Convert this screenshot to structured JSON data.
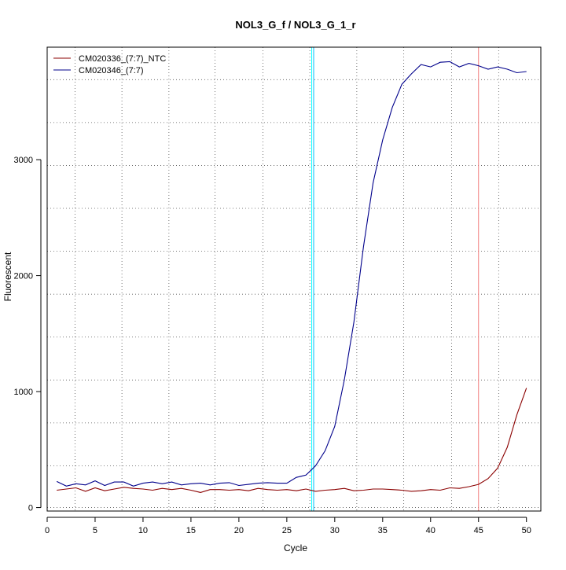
{
  "chart_data": {
    "type": "line",
    "title": "NOL3_G_f / NOL3_G_1_r",
    "xlabel": "Cycle",
    "ylabel": "Fluorescent",
    "xlim": [
      0,
      51.5
    ],
    "ylim": [
      -30,
      3970
    ],
    "x_ticks": [
      0,
      5,
      10,
      15,
      20,
      25,
      30,
      35,
      40,
      45,
      50
    ],
    "y_ticks": [
      0,
      1000,
      2000,
      3000
    ],
    "x_grid": [
      2.9,
      7.8,
      12.7,
      17.5,
      22.5,
      27.4,
      32.3,
      37.2,
      42.2,
      47.1
    ],
    "y_grid": [
      0,
      360,
      730,
      1100,
      1470,
      1840,
      2210,
      2580,
      2950,
      3320,
      3690
    ],
    "grid": true,
    "legend_position": "top-left",
    "x": [
      1,
      2,
      3,
      4,
      5,
      6,
      7,
      8,
      9,
      10,
      11,
      12,
      13,
      14,
      15,
      16,
      17,
      18,
      19,
      20,
      21,
      22,
      23,
      24,
      25,
      26,
      27,
      28,
      29,
      30,
      31,
      32,
      33,
      34,
      35,
      36,
      37,
      38,
      39,
      40,
      41,
      42,
      43,
      44,
      45,
      46,
      47,
      48,
      49,
      50
    ],
    "series": [
      {
        "name": "CM020336_(7:7)_NTC",
        "color": "#8b0000",
        "values": [
          150,
          160,
          170,
          140,
          170,
          145,
          160,
          175,
          165,
          160,
          150,
          165,
          155,
          165,
          150,
          130,
          155,
          155,
          150,
          155,
          145,
          165,
          155,
          150,
          155,
          145,
          160,
          140,
          150,
          155,
          165,
          145,
          150,
          160,
          160,
          155,
          150,
          140,
          145,
          155,
          150,
          170,
          165,
          180,
          200,
          250,
          340,
          520,
          800,
          1030
        ]
      },
      {
        "name": "CM020346_(7:7)",
        "color": "#00008b",
        "values": [
          225,
          185,
          205,
          195,
          230,
          190,
          220,
          220,
          185,
          210,
          220,
          205,
          220,
          195,
          205,
          210,
          195,
          210,
          215,
          190,
          200,
          210,
          215,
          210,
          210,
          260,
          280,
          360,
          490,
          700,
          1100,
          1600,
          2250,
          2800,
          3170,
          3450,
          3650,
          3740,
          3820,
          3800,
          3840,
          3845,
          3800,
          3830,
          3810,
          3780,
          3800,
          3780,
          3750,
          3760
        ]
      }
    ],
    "vlines": [
      {
        "x": 27.6,
        "color": "#00ffff"
      },
      {
        "x": 27.8,
        "color": "#00bfff"
      },
      {
        "x": 45,
        "color": "#f08080"
      }
    ]
  }
}
